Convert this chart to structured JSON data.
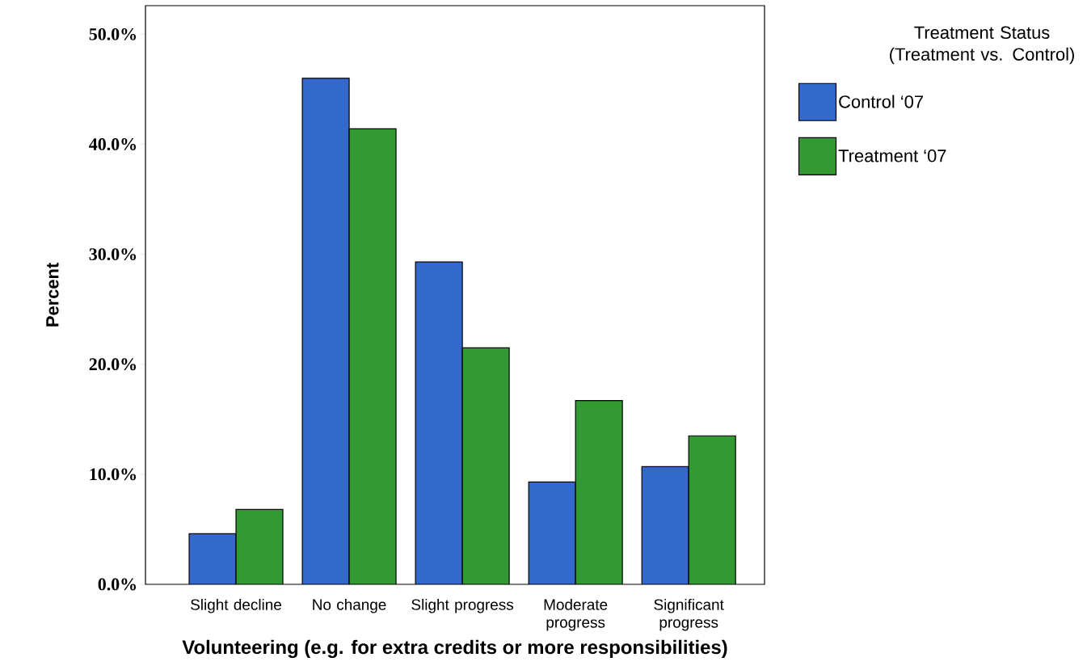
{
  "chart_data": {
    "type": "bar",
    "xlabel": "Volunteering (e.g. for extra credits or more responsibilities)",
    "ylabel": "Percent",
    "legend_title": "Treatment Status (Treatment vs. Control)",
    "categories": [
      "Slight decline",
      "No change",
      "Slight progress",
      "Moderate progress",
      "Significant progress"
    ],
    "series": [
      {
        "name": "Control ‘07",
        "color": "#3369cc",
        "values": [
          4.6,
          46.0,
          29.3,
          9.3,
          10.7
        ]
      },
      {
        "name": "Treatment ‘07",
        "color": "#339933",
        "values": [
          6.8,
          41.4,
          21.5,
          16.7,
          13.5
        ]
      }
    ],
    "ylim": [
      0,
      52.6
    ],
    "yticks": [
      {
        "value": 0,
        "label": "0.0%"
      },
      {
        "value": 10,
        "label": "10.0%"
      },
      {
        "value": 20,
        "label": "20.0%"
      },
      {
        "value": 30,
        "label": "30.0%"
      },
      {
        "value": 40,
        "label": "40.0%"
      },
      {
        "value": 50,
        "label": "50.0%"
      }
    ],
    "grid": false,
    "legend": "top right"
  }
}
